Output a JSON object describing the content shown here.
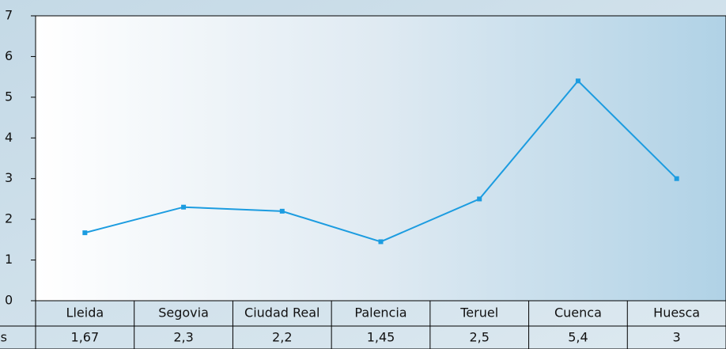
{
  "chart_data": {
    "type": "line",
    "categories": [
      "Lleida",
      "Segovia",
      "Ciudad Real",
      "Palencia",
      "Teruel",
      "Cuenca",
      "Huesca"
    ],
    "series": [
      {
        "name": "s",
        "color": "#1c9ce0",
        "values": [
          1.67,
          2.3,
          2.2,
          1.45,
          2.5,
          5.4,
          3
        ],
        "value_labels": [
          "1,67",
          "2,3",
          "2,2",
          "1,45",
          "2,5",
          "5,4",
          "3"
        ]
      }
    ],
    "ylim": [
      0,
      7
    ],
    "yticks": [
      0,
      1,
      2,
      3,
      4,
      5,
      6,
      7
    ]
  }
}
